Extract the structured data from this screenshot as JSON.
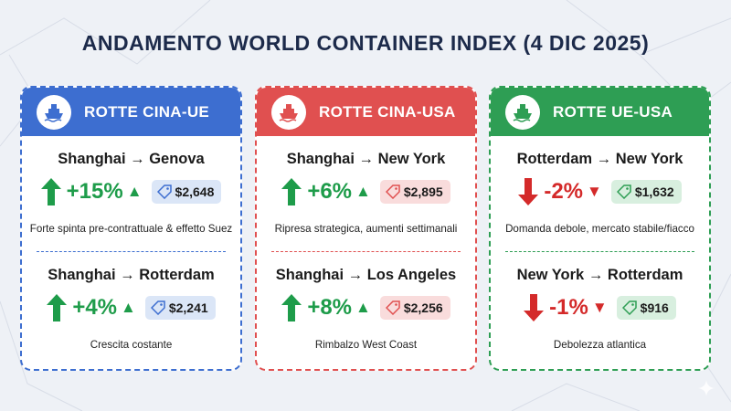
{
  "title": "ANDAMENTO WORLD CONTAINER INDEX (4 DIC 2025)",
  "colors": {
    "blue": "#3d6ed0",
    "red": "#e05050",
    "green": "#2e9e54",
    "up": "#1e9c4a",
    "down": "#d42a2a"
  },
  "cards": [
    {
      "title": "ROTTE CINA-UE",
      "icon": "ship-icon",
      "routes": [
        {
          "name": "Shanghai → Genova",
          "change": "+15%",
          "direction": "up",
          "price": "$2,648",
          "note": "Forte spinta pre-contrattuale & effetto Suez"
        },
        {
          "name": "Shanghai → Rotterdam",
          "change": "+4%",
          "direction": "up",
          "price": "$2,241",
          "note": "Crescita costante"
        }
      ]
    },
    {
      "title": "ROTTE CINA-USA",
      "icon": "ship-icon",
      "routes": [
        {
          "name": "Shanghai → New York",
          "change": "+6%",
          "direction": "up",
          "price": "$2,895",
          "note": "Ripresa strategica, aumenti settimanali"
        },
        {
          "name": "Shanghai → Los Angeles",
          "change": "+8%",
          "direction": "up",
          "price": "$2,256",
          "note": "Rimbalzo West Coast"
        }
      ]
    },
    {
      "title": "ROTTE UE-USA",
      "icon": "ship-icon",
      "routes": [
        {
          "name": "Rotterdam → New York",
          "change": "-2%",
          "direction": "down",
          "price": "$1,632",
          "note": "Domanda debole, mercato stabile/fiacco"
        },
        {
          "name": "New York → Rotterdam",
          "change": "-1%",
          "direction": "down",
          "price": "$916",
          "note": "Debolezza atlantica"
        }
      ]
    }
  ]
}
